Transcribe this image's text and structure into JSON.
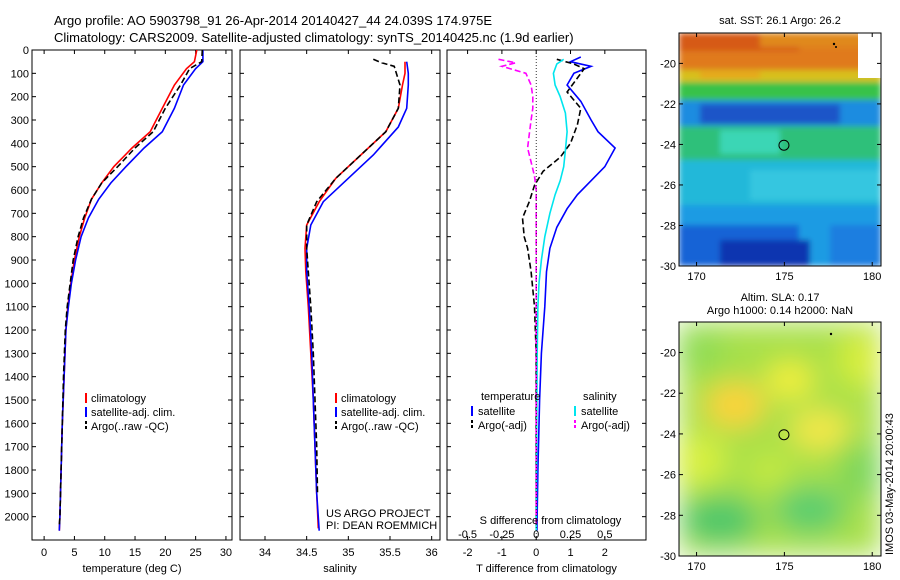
{
  "titles": {
    "line1": "Argo profile: AO 5903798_91 26-Apr-2014 20140427_44 24.039S 174.975E",
    "line2": "Climatology: CARS2009. Satellite-adjusted climatology: synTS_20140425.nc (1.9d earlier)"
  },
  "colors": {
    "climatology": "#ff0000",
    "satellite": "#0000ff",
    "argo": "#000000",
    "sal_satellite": "#00e5ee",
    "sal_argo": "#ff00ff"
  },
  "chart_data": [
    {
      "type": "line",
      "id": "temperature",
      "xlabel": "temperature (deg C)",
      "ylabel": "",
      "xlim": [
        -2,
        31
      ],
      "ylim": [
        2100,
        0
      ],
      "xticks": [
        0,
        5,
        10,
        15,
        20,
        25,
        30
      ],
      "yticks": [
        0,
        100,
        200,
        300,
        400,
        500,
        600,
        700,
        800,
        900,
        1000,
        1100,
        1200,
        1300,
        1400,
        1500,
        1600,
        1700,
        1800,
        1900,
        2000
      ],
      "legend": [
        "climatology",
        "satellite-adj. clim.",
        "Argo(..raw -QC)"
      ],
      "series": [
        {
          "name": "climatology",
          "color": "#ff0000",
          "style": "solid",
          "points": [
            [
              25.2,
              0
            ],
            [
              24.8,
              50
            ],
            [
              23.5,
              80
            ],
            [
              21.5,
              150
            ],
            [
              19.5,
              250
            ],
            [
              17.5,
              350
            ],
            [
              14.5,
              420
            ],
            [
              11.5,
              500
            ],
            [
              9.5,
              570
            ],
            [
              7.8,
              640
            ],
            [
              6.7,
              720
            ],
            [
              5.8,
              800
            ],
            [
              5.0,
              900
            ],
            [
              4.4,
              1000
            ],
            [
              3.9,
              1100
            ],
            [
              3.6,
              1200
            ],
            [
              3.3,
              1400
            ],
            [
              3.0,
              1600
            ],
            [
              2.8,
              1800
            ],
            [
              2.6,
              2000
            ],
            [
              2.5,
              2060
            ]
          ]
        },
        {
          "name": "satellite-adj. clim.",
          "color": "#0000ff",
          "style": "solid",
          "points": [
            [
              26.2,
              0
            ],
            [
              26.2,
              50
            ],
            [
              25.0,
              80
            ],
            [
              23.0,
              150
            ],
            [
              21.5,
              250
            ],
            [
              19.5,
              350
            ],
            [
              16.5,
              420
            ],
            [
              13.5,
              500
            ],
            [
              11.0,
              570
            ],
            [
              9.0,
              640
            ],
            [
              7.3,
              720
            ],
            [
              6.1,
              800
            ],
            [
              5.2,
              900
            ],
            [
              4.5,
              1000
            ],
            [
              4.0,
              1100
            ],
            [
              3.6,
              1200
            ],
            [
              3.3,
              1400
            ],
            [
              3.0,
              1600
            ],
            [
              2.8,
              1800
            ],
            [
              2.6,
              2000
            ],
            [
              2.5,
              2060
            ]
          ]
        },
        {
          "name": "Argo(..raw -QC)",
          "color": "#000000",
          "style": "dash",
          "points": [
            [
              26.1,
              0
            ],
            [
              26.0,
              50
            ],
            [
              24.0,
              80
            ],
            [
              22.5,
              150
            ],
            [
              20.0,
              250
            ],
            [
              18.0,
              350
            ],
            [
              15.0,
              420
            ],
            [
              12.5,
              490
            ],
            [
              9.5,
              570
            ],
            [
              7.8,
              640
            ],
            [
              6.5,
              720
            ],
            [
              5.6,
              800
            ],
            [
              4.8,
              900
            ],
            [
              4.3,
              1000
            ],
            [
              3.8,
              1100
            ],
            [
              3.5,
              1200
            ],
            [
              3.2,
              1400
            ],
            [
              3.0,
              1600
            ],
            [
              2.8,
              1800
            ],
            [
              2.6,
              2000
            ],
            [
              2.5,
              2040
            ]
          ]
        }
      ]
    },
    {
      "type": "line",
      "id": "salinity",
      "xlabel": "salinity",
      "xlim": [
        33.7,
        36.1
      ],
      "ylim": [
        2100,
        0
      ],
      "xticks": [
        34,
        34.5,
        35,
        35.5,
        36
      ],
      "legend": [
        "climatology",
        "satellite-adj. clim.",
        "Argo(..raw -QC)"
      ],
      "annotation": [
        "US ARGO PROJECT",
        "PI: DEAN ROEMMICH"
      ],
      "series": [
        {
          "name": "climatology",
          "color": "#ff0000",
          "style": "solid",
          "points": [
            [
              35.68,
              50
            ],
            [
              35.68,
              100
            ],
            [
              35.65,
              150
            ],
            [
              35.6,
              250
            ],
            [
              35.45,
              350
            ],
            [
              35.15,
              450
            ],
            [
              34.85,
              550
            ],
            [
              34.65,
              650
            ],
            [
              34.5,
              750
            ],
            [
              34.48,
              850
            ],
            [
              34.49,
              950
            ],
            [
              34.52,
              1100
            ],
            [
              34.55,
              1300
            ],
            [
              34.58,
              1500
            ],
            [
              34.6,
              1700
            ],
            [
              34.62,
              1900
            ],
            [
              34.64,
              2050
            ]
          ]
        },
        {
          "name": "satellite-adj. clim.",
          "color": "#0000ff",
          "style": "solid",
          "points": [
            [
              35.7,
              50
            ],
            [
              35.72,
              100
            ],
            [
              35.72,
              150
            ],
            [
              35.7,
              250
            ],
            [
              35.6,
              330
            ],
            [
              35.3,
              450
            ],
            [
              35.0,
              550
            ],
            [
              34.7,
              650
            ],
            [
              34.55,
              750
            ],
            [
              34.5,
              850
            ],
            [
              34.5,
              950
            ],
            [
              34.53,
              1100
            ],
            [
              34.56,
              1300
            ],
            [
              34.58,
              1500
            ],
            [
              34.6,
              1700
            ],
            [
              34.62,
              1900
            ],
            [
              34.65,
              2060
            ]
          ]
        },
        {
          "name": "Argo(..raw -QC)",
          "color": "#000000",
          "style": "dash",
          "points": [
            [
              35.3,
              40
            ],
            [
              35.4,
              55
            ],
            [
              35.55,
              70
            ],
            [
              35.62,
              150
            ],
            [
              35.6,
              250
            ],
            [
              35.45,
              350
            ],
            [
              35.15,
              450
            ],
            [
              34.85,
              550
            ],
            [
              34.62,
              650
            ],
            [
              34.5,
              750
            ],
            [
              34.5,
              850
            ],
            [
              34.52,
              950
            ],
            [
              34.55,
              1100
            ],
            [
              34.58,
              1300
            ],
            [
              34.6,
              1500
            ],
            [
              34.62,
              1700
            ],
            [
              34.63,
              1900
            ]
          ]
        }
      ]
    },
    {
      "type": "line",
      "id": "differences",
      "xlabel": "T difference from climatology",
      "xlabel_top": "S difference from climatology",
      "xlim": [
        -2.6,
        3.2
      ],
      "ylim": [
        2100,
        0
      ],
      "xticks": [
        -2,
        -1,
        0,
        1,
        2
      ],
      "xticks_s": [
        -0.5,
        -0.25,
        0,
        0.25,
        0.5
      ],
      "legend_t": {
        "head": "temperature",
        "items": [
          "satellite",
          "Argo(-adj)"
        ]
      },
      "legend_s": {
        "head": "salinity",
        "items": [
          "satellite",
          "Argo(-adj)"
        ]
      },
      "series": [
        {
          "name": "satellite",
          "group": "temperature",
          "color": "#0000ff",
          "style": "solid",
          "points": [
            [
              1.3,
              30
            ],
            [
              1.0,
              50
            ],
            [
              1.6,
              70
            ],
            [
              1.1,
              100
            ],
            [
              0.9,
              150
            ],
            [
              1.3,
              220
            ],
            [
              1.6,
              300
            ],
            [
              1.8,
              350
            ],
            [
              2.3,
              420
            ],
            [
              2.0,
              500
            ],
            [
              1.6,
              560
            ],
            [
              1.2,
              620
            ],
            [
              0.9,
              680
            ],
            [
              0.6,
              760
            ],
            [
              0.4,
              850
            ],
            [
              0.3,
              950
            ],
            [
              0.25,
              1100
            ],
            [
              0.15,
              1300
            ],
            [
              0.1,
              1500
            ],
            [
              0.05,
              1800
            ],
            [
              0.02,
              2060
            ]
          ]
        },
        {
          "name": "Argo(-adj)",
          "group": "temperature",
          "color": "#000000",
          "style": "dash",
          "points": [
            [
              0.6,
              40
            ],
            [
              1.1,
              60
            ],
            [
              1.4,
              80
            ],
            [
              1.2,
              120
            ],
            [
              0.9,
              180
            ],
            [
              1.3,
              250
            ],
            [
              1.2,
              320
            ],
            [
              1.0,
              400
            ],
            [
              0.7,
              460
            ],
            [
              0.2,
              520
            ],
            [
              -0.05,
              580
            ],
            [
              -0.2,
              650
            ],
            [
              -0.4,
              720
            ],
            [
              -0.35,
              800
            ],
            [
              -0.25,
              850
            ],
            [
              -0.15,
              950
            ],
            [
              -0.05,
              1100
            ],
            [
              0.0,
              1300
            ],
            [
              0.0,
              1500
            ],
            [
              0.0,
              1800
            ],
            [
              0.0,
              2040
            ]
          ]
        },
        {
          "name": "satellite",
          "group": "salinity",
          "color": "#00e5ee",
          "style": "solid",
          "points": [
            [
              0.8,
              40
            ],
            [
              0.6,
              60
            ],
            [
              0.5,
              100
            ],
            [
              0.55,
              150
            ],
            [
              0.7,
              200
            ],
            [
              0.85,
              270
            ],
            [
              0.9,
              350
            ],
            [
              0.85,
              430
            ],
            [
              0.8,
              500
            ],
            [
              0.7,
              560
            ],
            [
              0.55,
              620
            ],
            [
              0.4,
              700
            ],
            [
              0.25,
              800
            ],
            [
              0.15,
              900
            ],
            [
              0.08,
              1000
            ],
            [
              0.05,
              1100
            ],
            [
              0.03,
              1300
            ],
            [
              0.02,
              1500
            ],
            [
              0.01,
              1800
            ],
            [
              0.0,
              2060
            ]
          ]
        },
        {
          "name": "Argo(-adj)",
          "group": "salinity",
          "color": "#ff00ff",
          "style": "dash",
          "points": [
            [
              -1.1,
              40
            ],
            [
              -0.6,
              55
            ],
            [
              -1.0,
              70
            ],
            [
              -0.3,
              100
            ],
            [
              -0.15,
              150
            ],
            [
              -0.1,
              200
            ],
            [
              -0.1,
              250
            ],
            [
              -0.15,
              300
            ],
            [
              -0.2,
              360
            ],
            [
              -0.25,
              420
            ],
            [
              -0.15,
              480
            ],
            [
              -0.05,
              540
            ],
            [
              0.0,
              600
            ],
            [
              0.0,
              700
            ],
            [
              0.0,
              800
            ],
            [
              0.0,
              900
            ],
            [
              0.0,
              1100
            ],
            [
              0.0,
              1400
            ],
            [
              0.0,
              1800
            ],
            [
              0.0,
              2040
            ]
          ]
        }
      ]
    }
  ],
  "maps": {
    "sst": {
      "title": "sat. SST: 26.1  Argo: 26.2",
      "lon_ticks": [
        170,
        175,
        180
      ],
      "lat_ticks": [
        -20,
        -22,
        -24,
        -26,
        -28,
        -30
      ],
      "lon_range": [
        169,
        180.5
      ],
      "lat_range": [
        -18.5,
        -30
      ],
      "argo_marker": [
        174.975,
        -24.039
      ]
    },
    "sla": {
      "title_line1": "Altim. SLA: 0.17",
      "title_line2": "Argo h1000: 0.14 h2000: NaN",
      "lon_ticks": [
        170,
        175,
        180
      ],
      "lat_ticks": [
        -20,
        -22,
        -24,
        -26,
        -28,
        -30
      ],
      "lon_range": [
        169,
        180.5
      ],
      "lat_range": [
        -18.5,
        -30
      ],
      "argo_marker": [
        174.975,
        -24.039
      ]
    }
  },
  "side_label": "IMOS 03-May-2014 20:00:43"
}
